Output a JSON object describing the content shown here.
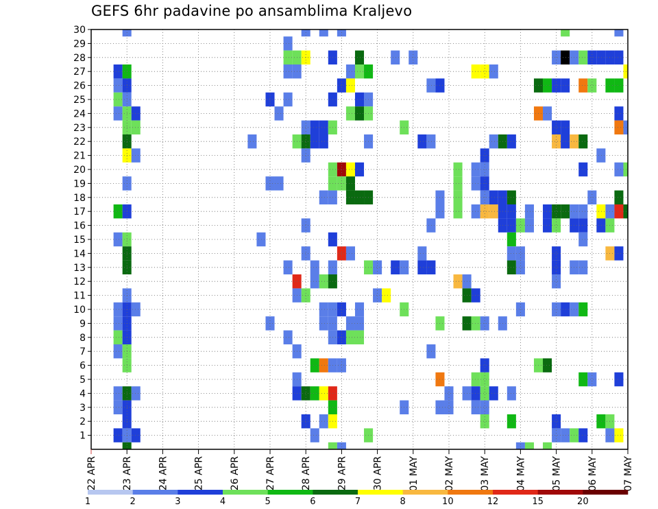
{
  "chart_data": {
    "type": "heatmap",
    "title": "GEFS 6hr padavine po ansamblima Kraljevo",
    "xlabel": "",
    "ylabel": "",
    "x_ticks": [
      "22 APR",
      "23 APR",
      "24 APR",
      "25 APR",
      "26 APR",
      "27 APR",
      "28 APR",
      "29 APR",
      "30 APR",
      "01 MAY",
      "02 MAY",
      "03 MAY",
      "04 MAY",
      "05 MAY",
      "06 MAY",
      "07 MAY"
    ],
    "x_range_days": [
      0,
      15
    ],
    "x_step_hours": 6,
    "y_ticks": [
      1,
      2,
      3,
      4,
      5,
      6,
      7,
      8,
      9,
      10,
      11,
      12,
      13,
      14,
      15,
      16,
      17,
      18,
      19,
      20,
      21,
      22,
      23,
      24,
      25,
      26,
      27,
      28,
      29,
      30
    ],
    "y_range": [
      0,
      30
    ],
    "grid": true,
    "colorbar": {
      "labels": [
        "1",
        "2",
        "3",
        "4",
        "5",
        "6",
        "7",
        "8",
        "10",
        "12",
        "15",
        "20"
      ],
      "colors": [
        "#b7c7f0",
        "#5a7ee8",
        "#1f3fd9",
        "#6ee05a",
        "#10b814",
        "#0a6a10",
        "#ffff00",
        "#f8b840",
        "#f07810",
        "#e02818",
        "#a00808",
        "#6a0000"
      ]
    },
    "cells": [
      [
        30,
        1,
        1
      ],
      [
        30,
        6,
        1
      ],
      [
        30,
        6.5,
        1
      ],
      [
        30,
        7,
        1
      ],
      [
        30,
        13.25,
        3
      ],
      [
        30,
        14.75,
        1
      ],
      [
        29,
        5.5,
        1
      ],
      [
        28,
        5.5,
        3
      ],
      [
        28,
        5.75,
        3
      ],
      [
        28,
        6,
        6
      ],
      [
        28,
        6.75,
        2
      ],
      [
        28,
        7.5,
        5
      ],
      [
        28,
        8.5,
        1
      ],
      [
        28,
        9,
        1
      ],
      [
        28,
        13,
        1
      ],
      [
        28,
        13.25,
        12
      ],
      [
        28,
        13.5,
        1
      ],
      [
        28,
        13.75,
        3
      ],
      [
        28,
        14,
        2
      ],
      [
        28,
        14.25,
        2
      ],
      [
        28,
        14.5,
        2
      ],
      [
        28,
        14.75,
        2
      ],
      [
        27,
        0.75,
        2
      ],
      [
        27,
        1,
        4
      ],
      [
        27,
        5.5,
        1
      ],
      [
        27,
        5.75,
        1
      ],
      [
        27,
        7.25,
        1
      ],
      [
        27,
        7.5,
        3
      ],
      [
        27,
        7.75,
        4
      ],
      [
        27,
        10.75,
        6
      ],
      [
        27,
        11,
        6
      ],
      [
        27,
        11.25,
        1
      ],
      [
        27,
        15,
        6
      ],
      [
        26,
        0.75,
        1
      ],
      [
        26,
        1,
        2
      ],
      [
        26,
        7,
        2
      ],
      [
        26,
        7.25,
        6
      ],
      [
        26,
        9.5,
        1
      ],
      [
        26,
        9.75,
        2
      ],
      [
        26,
        12.5,
        5
      ],
      [
        26,
        12.75,
        4
      ],
      [
        26,
        13,
        2
      ],
      [
        26,
        13.25,
        2
      ],
      [
        26,
        13.75,
        8
      ],
      [
        26,
        14,
        3
      ],
      [
        26,
        14.5,
        4
      ],
      [
        26,
        14.75,
        4
      ],
      [
        25,
        0.75,
        3
      ],
      [
        25,
        1,
        1
      ],
      [
        25,
        5,
        2
      ],
      [
        25,
        5.5,
        1
      ],
      [
        25,
        6.75,
        2
      ],
      [
        25,
        7.5,
        2
      ],
      [
        25,
        7.75,
        1
      ],
      [
        24,
        0.75,
        1
      ],
      [
        24,
        1,
        3
      ],
      [
        24,
        1.25,
        2
      ],
      [
        24,
        5.25,
        1
      ],
      [
        24,
        7.25,
        3
      ],
      [
        24,
        7.5,
        5
      ],
      [
        24,
        7.75,
        3
      ],
      [
        24,
        12.5,
        8
      ],
      [
        24,
        12.75,
        1
      ],
      [
        24,
        14.75,
        2
      ],
      [
        23,
        1,
        3
      ],
      [
        23,
        1.25,
        3
      ],
      [
        23,
        6,
        1
      ],
      [
        23,
        6.25,
        2
      ],
      [
        23,
        6.5,
        2
      ],
      [
        23,
        6.75,
        3
      ],
      [
        23,
        8.75,
        3
      ],
      [
        23,
        13,
        2
      ],
      [
        23,
        13.25,
        2
      ],
      [
        23,
        14.75,
        8
      ],
      [
        23,
        15,
        1
      ],
      [
        22,
        1,
        5
      ],
      [
        22,
        4.5,
        1
      ],
      [
        22,
        5.75,
        3
      ],
      [
        22,
        6,
        5
      ],
      [
        22,
        6.25,
        2
      ],
      [
        22,
        6.5,
        2
      ],
      [
        22,
        7.75,
        1
      ],
      [
        22,
        9.25,
        2
      ],
      [
        22,
        9.5,
        1
      ],
      [
        22,
        11.25,
        1
      ],
      [
        22,
        11.5,
        5
      ],
      [
        22,
        11.75,
        2
      ],
      [
        22,
        13,
        7
      ],
      [
        22,
        13.25,
        2
      ],
      [
        22,
        13.5,
        7
      ],
      [
        22,
        13.75,
        5
      ],
      [
        21,
        1,
        6
      ],
      [
        21,
        1.25,
        1
      ],
      [
        21,
        6,
        1
      ],
      [
        21,
        11,
        2
      ],
      [
        21,
        14.25,
        1
      ],
      [
        20,
        6.75,
        3
      ],
      [
        20,
        7,
        10
      ],
      [
        20,
        7.25,
        6
      ],
      [
        20,
        7.5,
        2
      ],
      [
        20,
        10.25,
        3
      ],
      [
        20,
        10.75,
        1
      ],
      [
        20,
        11,
        1
      ],
      [
        20,
        13.75,
        2
      ],
      [
        20,
        14.75,
        1
      ],
      [
        20,
        15,
        3
      ],
      [
        19,
        1,
        1
      ],
      [
        19,
        5,
        1
      ],
      [
        19,
        5.25,
        1
      ],
      [
        19,
        6.75,
        3
      ],
      [
        19,
        7,
        3
      ],
      [
        19,
        7.25,
        5
      ],
      [
        19,
        10.25,
        3
      ],
      [
        19,
        10.75,
        1
      ],
      [
        19,
        11,
        2
      ],
      [
        18,
        6.5,
        1
      ],
      [
        18,
        6.75,
        1
      ],
      [
        18,
        7.25,
        5
      ],
      [
        18,
        7.5,
        5
      ],
      [
        18,
        7.75,
        5
      ],
      [
        18,
        9.75,
        1
      ],
      [
        18,
        10.25,
        3
      ],
      [
        18,
        11,
        1
      ],
      [
        18,
        11.25,
        2
      ],
      [
        18,
        11.5,
        2
      ],
      [
        18,
        11.75,
        5
      ],
      [
        18,
        14,
        1
      ],
      [
        18,
        14.75,
        5
      ],
      [
        17,
        0.75,
        4
      ],
      [
        17,
        1,
        2
      ],
      [
        17,
        9.75,
        1
      ],
      [
        17,
        10.25,
        3
      ],
      [
        17,
        10.75,
        1
      ],
      [
        17,
        11,
        7
      ],
      [
        17,
        11.25,
        7
      ],
      [
        17,
        11.5,
        2
      ],
      [
        17,
        11.75,
        2
      ],
      [
        17,
        12.25,
        1
      ],
      [
        17,
        12.75,
        2
      ],
      [
        17,
        13,
        5
      ],
      [
        17,
        13.25,
        5
      ],
      [
        17,
        13.5,
        1
      ],
      [
        17,
        13.75,
        1
      ],
      [
        17,
        14.25,
        6
      ],
      [
        17,
        14.5,
        1
      ],
      [
        17,
        14.75,
        9
      ],
      [
        17,
        15,
        5
      ],
      [
        16,
        6,
        1
      ],
      [
        16,
        9.5,
        1
      ],
      [
        16,
        11.5,
        2
      ],
      [
        16,
        11.75,
        2
      ],
      [
        16,
        12,
        3
      ],
      [
        16,
        12.25,
        1
      ],
      [
        16,
        12.75,
        2
      ],
      [
        16,
        13,
        3
      ],
      [
        16,
        13.5,
        2
      ],
      [
        16,
        13.75,
        2
      ],
      [
        16,
        14.25,
        2
      ],
      [
        16,
        14.5,
        3
      ],
      [
        15,
        0.75,
        1
      ],
      [
        15,
        1,
        3
      ],
      [
        15,
        4.75,
        1
      ],
      [
        15,
        6.75,
        2
      ],
      [
        15,
        11.75,
        4
      ],
      [
        15,
        13.75,
        1
      ],
      [
        14,
        1,
        5
      ],
      [
        14,
        6,
        1
      ],
      [
        14,
        7,
        9
      ],
      [
        14,
        7.25,
        1
      ],
      [
        14,
        9.25,
        1
      ],
      [
        14,
        11.75,
        1
      ],
      [
        14,
        12,
        1
      ],
      [
        14,
        13,
        2
      ],
      [
        14,
        14.5,
        7
      ],
      [
        14,
        14.75,
        2
      ],
      [
        13,
        1,
        5
      ],
      [
        13,
        5.5,
        1
      ],
      [
        13,
        6.25,
        1
      ],
      [
        13,
        6.75,
        1
      ],
      [
        13,
        7.75,
        3
      ],
      [
        13,
        8,
        1
      ],
      [
        13,
        8.5,
        2
      ],
      [
        13,
        8.75,
        1
      ],
      [
        13,
        9.25,
        2
      ],
      [
        13,
        9.5,
        2
      ],
      [
        13,
        11.75,
        5
      ],
      [
        13,
        12,
        1
      ],
      [
        13,
        13,
        2
      ],
      [
        13,
        13.5,
        1
      ],
      [
        13,
        13.75,
        1
      ],
      [
        12,
        5.75,
        9
      ],
      [
        12,
        6.25,
        1
      ],
      [
        12,
        6.5,
        3
      ],
      [
        12,
        6.75,
        5
      ],
      [
        12,
        10.25,
        7
      ],
      [
        12,
        10.5,
        1
      ],
      [
        12,
        13,
        1
      ],
      [
        11,
        1,
        1
      ],
      [
        11,
        5.75,
        1
      ],
      [
        11,
        6,
        3
      ],
      [
        11,
        8,
        1
      ],
      [
        11,
        8.25,
        6
      ],
      [
        11,
        10.5,
        5
      ],
      [
        11,
        10.75,
        2
      ],
      [
        10,
        0.75,
        1
      ],
      [
        10,
        1,
        2
      ],
      [
        10,
        1.25,
        1
      ],
      [
        10,
        6.5,
        1
      ],
      [
        10,
        6.75,
        1
      ],
      [
        10,
        7,
        2
      ],
      [
        10,
        7.5,
        1
      ],
      [
        10,
        8.75,
        3
      ],
      [
        10,
        12,
        1
      ],
      [
        10,
        13,
        1
      ],
      [
        10,
        13.25,
        2
      ],
      [
        10,
        13.5,
        1
      ],
      [
        10,
        13.75,
        4
      ],
      [
        9,
        0.75,
        1
      ],
      [
        9,
        1,
        2
      ],
      [
        9,
        5,
        1
      ],
      [
        9,
        6.5,
        1
      ],
      [
        9,
        6.75,
        1
      ],
      [
        9,
        7.25,
        1
      ],
      [
        9,
        7.5,
        1
      ],
      [
        9,
        9.75,
        3
      ],
      [
        9,
        10.5,
        5
      ],
      [
        9,
        10.75,
        3
      ],
      [
        9,
        11,
        1
      ],
      [
        9,
        11.5,
        1
      ],
      [
        8,
        0.75,
        3
      ],
      [
        8,
        1,
        2
      ],
      [
        8,
        5.5,
        1
      ],
      [
        8,
        6.75,
        1
      ],
      [
        8,
        7,
        2
      ],
      [
        8,
        7.25,
        3
      ],
      [
        8,
        7.5,
        3
      ],
      [
        7,
        0.75,
        1
      ],
      [
        7,
        1,
        3
      ],
      [
        7,
        5.75,
        1
      ],
      [
        7,
        9.5,
        1
      ],
      [
        6,
        1,
        3
      ],
      [
        6,
        6.25,
        4
      ],
      [
        6,
        6.5,
        8
      ],
      [
        6,
        6.75,
        1
      ],
      [
        6,
        7,
        1
      ],
      [
        6,
        11,
        2
      ],
      [
        6,
        12.5,
        3
      ],
      [
        6,
        12.75,
        5
      ],
      [
        5,
        5.75,
        1
      ],
      [
        5,
        9.75,
        8
      ],
      [
        5,
        10.75,
        3
      ],
      [
        5,
        11,
        3
      ],
      [
        5,
        13.75,
        4
      ],
      [
        5,
        14,
        1
      ],
      [
        5,
        14.75,
        2
      ],
      [
        4,
        0.75,
        1
      ],
      [
        4,
        1,
        5
      ],
      [
        4,
        1.25,
        1
      ],
      [
        4,
        5.75,
        2
      ],
      [
        4,
        6,
        5
      ],
      [
        4,
        6.25,
        4
      ],
      [
        4,
        6.5,
        6
      ],
      [
        4,
        6.75,
        9
      ],
      [
        4,
        10,
        1
      ],
      [
        4,
        10.5,
        1
      ],
      [
        4,
        10.75,
        2
      ],
      [
        4,
        11,
        3
      ],
      [
        4,
        11.25,
        2
      ],
      [
        4,
        11.75,
        1
      ],
      [
        3,
        0.75,
        1
      ],
      [
        3,
        1,
        2
      ],
      [
        3,
        6.75,
        4
      ],
      [
        3,
        8.75,
        1
      ],
      [
        3,
        9.75,
        1
      ],
      [
        3,
        10,
        1
      ],
      [
        3,
        10.75,
        1
      ],
      [
        3,
        11,
        1
      ],
      [
        2,
        1,
        2
      ],
      [
        2,
        6,
        2
      ],
      [
        2,
        6.5,
        1
      ],
      [
        2,
        6.75,
        6
      ],
      [
        2,
        11,
        3
      ],
      [
        2,
        11.75,
        4
      ],
      [
        2,
        13,
        2
      ],
      [
        2,
        14.25,
        4
      ],
      [
        2,
        14.5,
        3
      ],
      [
        1,
        0.75,
        2
      ],
      [
        1,
        1,
        1
      ],
      [
        1,
        1.25,
        2
      ],
      [
        1,
        6.25,
        1
      ],
      [
        1,
        7.75,
        3
      ],
      [
        1,
        13,
        1
      ],
      [
        1,
        13.25,
        1
      ],
      [
        1,
        13.5,
        3
      ],
      [
        1,
        13.75,
        2
      ],
      [
        1,
        14.5,
        1
      ],
      [
        1,
        14.75,
        6
      ],
      [
        0,
        1,
        5
      ],
      [
        0,
        6.75,
        3
      ],
      [
        0,
        7,
        1
      ],
      [
        0,
        12,
        1
      ],
      [
        0,
        12.25,
        3
      ],
      [
        0,
        12.75,
        3
      ]
    ]
  }
}
